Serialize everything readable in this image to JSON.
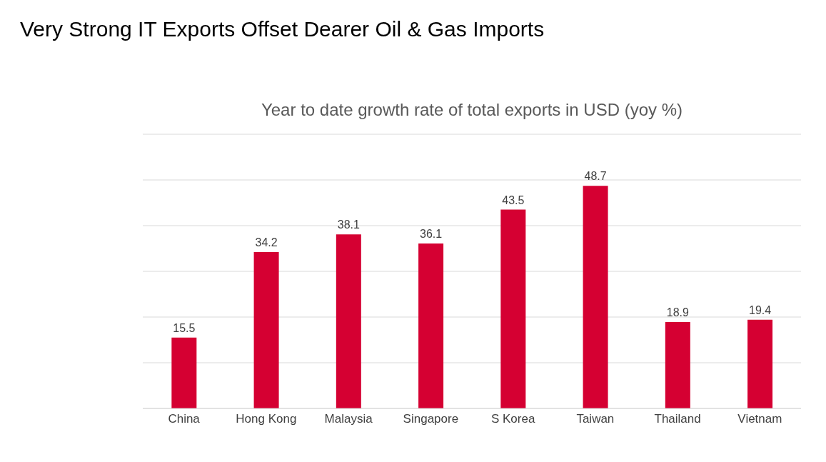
{
  "chart_data": {
    "type": "bar",
    "title": "Very Strong IT Exports Offset Dearer Oil & Gas Imports",
    "subtitle": "Year to date growth rate of total exports in USD (yoy %)",
    "categories": [
      "China",
      "Hong Kong",
      "Malaysia",
      "Singapore",
      "S Korea",
      "Taiwan",
      "Thailand",
      "Vietnam"
    ],
    "values": [
      15.5,
      34.2,
      38.1,
      36.1,
      43.5,
      48.7,
      18.9,
      19.4
    ],
    "color": "#d50032",
    "ylim": [
      0,
      60
    ],
    "yticks": [
      {
        "value": 0,
        "label": null
      },
      {
        "value": 10,
        "label": null
      },
      {
        "value": 20,
        "label": null
      },
      {
        "value": 30,
        "label": null
      },
      {
        "value": 40,
        "label": null
      },
      {
        "value": 50,
        "label": null
      },
      {
        "value": 60,
        "label": null
      }
    ],
    "grid": "y",
    "tick_labels": "x",
    "data_labels": true,
    "legend": false
  }
}
